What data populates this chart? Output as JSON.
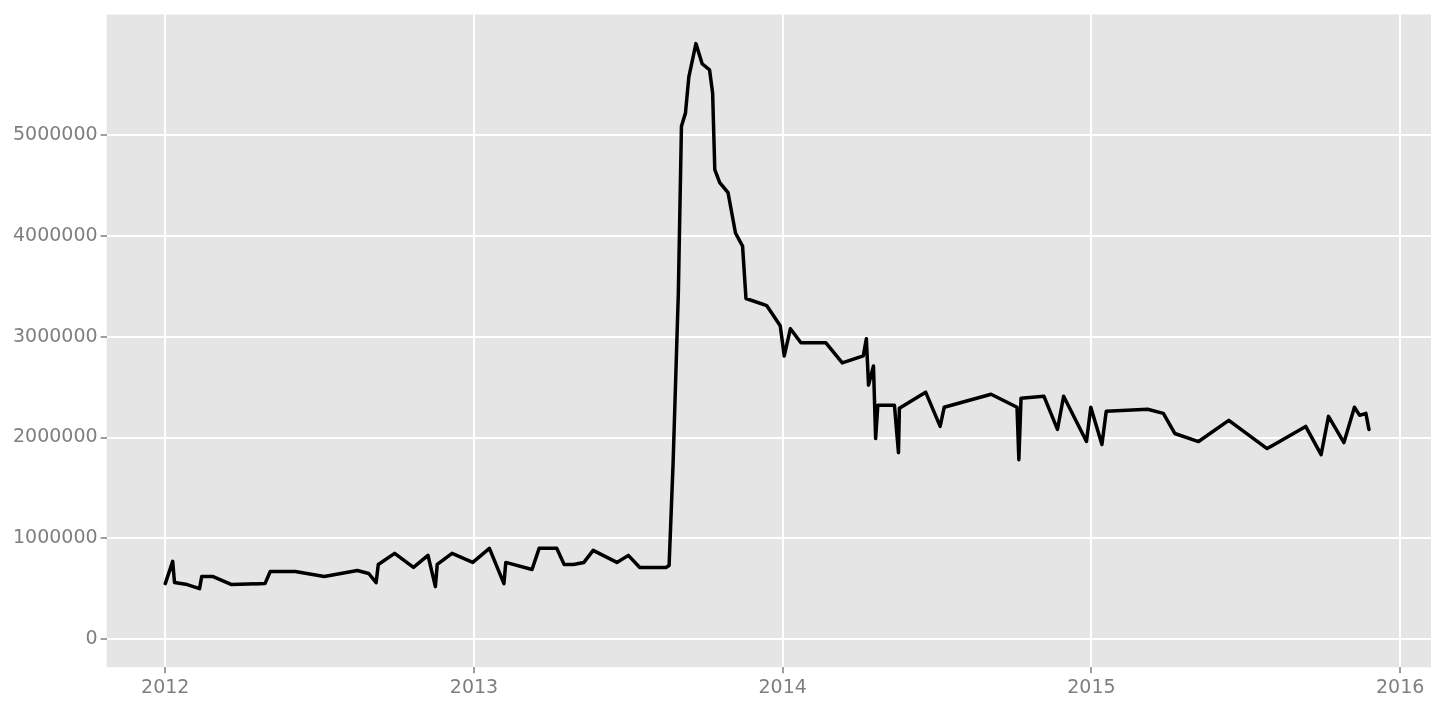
{
  "chart_data": {
    "type": "line",
    "xlim": [
      2011.81,
      2016.1
    ],
    "ylim": [
      -280000,
      6200000
    ],
    "xticks": [
      2012,
      2013,
      2014,
      2015,
      2016
    ],
    "yticks": [
      0,
      1000000,
      2000000,
      3000000,
      4000000,
      5000000
    ],
    "grid": true,
    "legend": false,
    "marker": "none",
    "line_style": "solid",
    "series": [
      {
        "color": "#000000",
        "x": [
          2012.0,
          2012.024,
          2012.03,
          2012.071,
          2012.111,
          2012.118,
          2012.155,
          2012.215,
          2012.323,
          2012.34,
          2012.421,
          2012.515,
          2012.622,
          2012.659,
          2012.683,
          2012.69,
          2012.743,
          2012.804,
          2012.851,
          2012.875,
          2012.881,
          2012.929,
          2012.996,
          2013.05,
          2013.097,
          2013.103,
          2013.188,
          2013.211,
          2013.268,
          2013.292,
          2013.322,
          2013.356,
          2013.386,
          2013.463,
          2013.5,
          2013.537,
          2013.622,
          2013.632,
          2013.645,
          2013.662,
          2013.672,
          2013.685,
          2013.696,
          2013.719,
          2013.739,
          2013.763,
          2013.773,
          2013.78,
          2013.796,
          2013.823,
          2013.847,
          2013.87,
          2013.881,
          2013.948,
          2013.992,
          2014.005,
          2014.025,
          2014.059,
          2014.14,
          2014.193,
          2014.261,
          2014.271,
          2014.278,
          2014.294,
          2014.301,
          2014.308,
          2014.362,
          2014.375,
          2014.378,
          2014.463,
          2014.51,
          2014.523,
          2014.675,
          2014.759,
          2014.765,
          2014.772,
          2014.846,
          2014.89,
          2014.91,
          2014.984,
          2014.998,
          2015.034,
          2015.048,
          2015.182,
          2015.233,
          2015.27,
          2015.347,
          2015.445,
          2015.569,
          2015.694,
          2015.744,
          2015.768,
          2015.818,
          2015.852,
          2015.869,
          2015.889,
          2015.899
        ],
        "values": [
          550000,
          770000,
          560000,
          540000,
          500000,
          620000,
          620000,
          540000,
          550000,
          670000,
          670000,
          620000,
          680000,
          650000,
          560000,
          740000,
          850000,
          710000,
          830000,
          520000,
          740000,
          850000,
          760000,
          900000,
          550000,
          760000,
          690000,
          900000,
          900000,
          740000,
          740000,
          760000,
          880000,
          760000,
          830000,
          710000,
          710000,
          730000,
          1750000,
          3440000,
          5090000,
          5220000,
          5580000,
          5910000,
          5710000,
          5650000,
          5420000,
          4660000,
          4530000,
          4430000,
          4030000,
          3900000,
          3380000,
          3310000,
          3110000,
          2810000,
          3080000,
          2940000,
          2940000,
          2740000,
          2810000,
          2980000,
          2520000,
          2710000,
          1990000,
          2320000,
          2320000,
          1850000,
          2290000,
          2450000,
          2110000,
          2300000,
          2430000,
          2300000,
          1780000,
          2390000,
          2410000,
          2080000,
          2410000,
          1960000,
          2300000,
          1930000,
          2260000,
          2280000,
          2240000,
          2040000,
          1960000,
          2170000,
          1890000,
          2110000,
          1830000,
          2210000,
          1950000,
          2300000,
          2220000,
          2240000,
          2080000
        ]
      }
    ]
  }
}
